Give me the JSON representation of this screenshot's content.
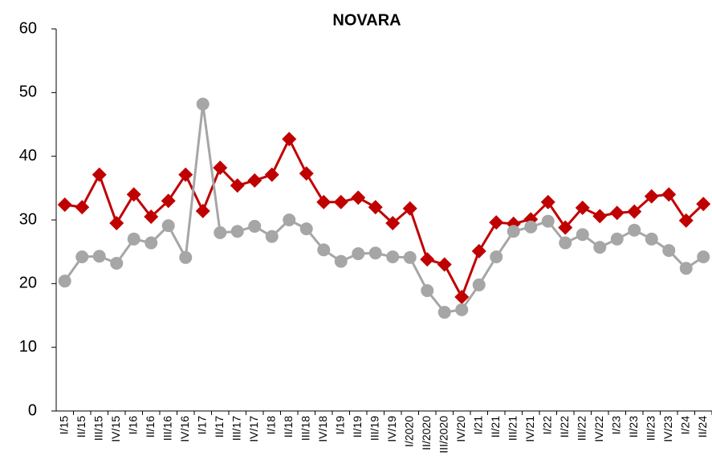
{
  "chart_data": {
    "type": "line",
    "title": "NOVARA",
    "categories": [
      "I/15",
      "II/15",
      "III/15",
      "IV/15",
      "I/16",
      "II/16",
      "III/16",
      "IV/16",
      "I/17",
      "II/17",
      "III/17",
      "IV/17",
      "I/18",
      "II/18",
      "III/18",
      "IV/18",
      "I/19",
      "II/19",
      "III/19",
      "IV/19",
      "I/2020",
      "II/2020",
      "III/2020",
      "IV/20",
      "I/21",
      "II/21",
      "III/21",
      "IV/21",
      "I/22",
      "II/22",
      "III/22",
      "IV/22",
      "I/23",
      "II/23",
      "III/23",
      "IV/23",
      "I/24",
      "II/24"
    ],
    "series": [
      {
        "color": "#c00000",
        "marker": "diamond",
        "values": [
          32.4,
          32.0,
          37.1,
          29.5,
          34.0,
          30.5,
          33.0,
          37.1,
          31.4,
          38.2,
          35.4,
          36.2,
          37.1,
          42.7,
          37.3,
          32.8,
          32.8,
          33.5,
          32.0,
          29.5,
          31.8,
          23.8,
          23.0,
          17.9,
          25.1,
          29.6,
          29.4,
          30.1,
          32.8,
          28.8,
          31.9,
          30.6,
          31.1,
          31.3,
          33.7,
          34.0,
          29.9,
          32.5
        ]
      },
      {
        "color": "#a6a6a6",
        "marker": "circle",
        "values": [
          20.4,
          24.2,
          24.3,
          23.2,
          27.0,
          26.4,
          29.1,
          24.1,
          48.2,
          28.0,
          28.2,
          29.0,
          27.4,
          30.0,
          28.6,
          25.3,
          23.5,
          24.7,
          24.8,
          24.2,
          24.1,
          18.9,
          15.5,
          15.9,
          19.8,
          24.2,
          28.2,
          28.9,
          29.8,
          26.4,
          27.7,
          25.7,
          27.0,
          28.4,
          27.0,
          25.2,
          22.4,
          24.2
        ]
      }
    ],
    "ylim": [
      0,
      60
    ],
    "yticks": [
      0,
      10,
      20,
      30,
      40,
      50,
      60
    ],
    "grid": false
  }
}
